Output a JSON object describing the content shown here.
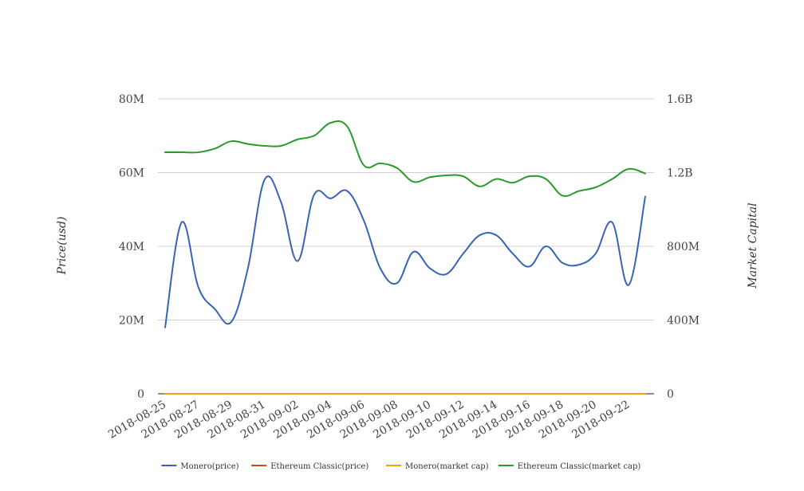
{
  "chart_data": {
    "type": "line",
    "title": "",
    "x": [
      "2018-08-25",
      "2018-08-26",
      "2018-08-27",
      "2018-08-28",
      "2018-08-29",
      "2018-08-30",
      "2018-08-31",
      "2018-09-01",
      "2018-09-02",
      "2018-09-03",
      "2018-09-04",
      "2018-09-05",
      "2018-09-06",
      "2018-09-07",
      "2018-09-08",
      "2018-09-09",
      "2018-09-10",
      "2018-09-11",
      "2018-09-12",
      "2018-09-13",
      "2018-09-14",
      "2018-09-15",
      "2018-09-16",
      "2018-09-17",
      "2018-09-18",
      "2018-09-19",
      "2018-09-20",
      "2018-09-21",
      "2018-09-22",
      "2018-09-23"
    ],
    "x_tick_labels": [
      "2018-08-25",
      "2018-08-27",
      "2018-08-29",
      "2018-08-31",
      "2018-09-02",
      "2018-09-04",
      "2018-09-06",
      "2018-09-08",
      "2018-09-10",
      "2018-09-12",
      "2018-09-14",
      "2018-09-16",
      "2018-09-18",
      "2018-09-20",
      "2018-09-22"
    ],
    "y_left": {
      "label": "Price(usd)",
      "ticks": [
        0,
        20000000,
        40000000,
        60000000,
        80000000
      ],
      "tick_labels": [
        "0",
        "20M",
        "40M",
        "60M",
        "80M"
      ],
      "range": [
        0,
        80000000
      ]
    },
    "y_right": {
      "label": "Market Capital",
      "ticks": [
        0,
        400000000,
        800000000,
        1200000000,
        1600000000
      ],
      "tick_labels": [
        "0",
        "400M",
        "800M",
        "1.2B",
        "1.6B"
      ],
      "range": [
        0,
        1600000000
      ]
    },
    "grid": true,
    "legend_position": "bottom",
    "series": [
      {
        "name": "Monero(price)",
        "axis": "left",
        "color": "#3a62b8",
        "values": [
          18000000,
          46500000,
          29000000,
          23000000,
          19500000,
          34000000,
          58000000,
          52000000,
          36000000,
          54000000,
          53000000,
          55000000,
          47000000,
          34000000,
          30000000,
          38500000,
          34000000,
          32500000,
          38000000,
          43000000,
          43000000,
          38000000,
          34500000,
          40000000,
          35500000,
          35000000,
          38000000,
          46500000,
          29500000,
          53500000
        ]
      },
      {
        "name": "Ethereum Classic(price)",
        "axis": "left",
        "color": "#c8491c",
        "values": [
          12,
          12,
          12,
          12,
          12,
          12,
          12,
          12,
          12,
          12,
          12,
          12,
          12,
          12,
          12,
          12,
          12,
          12,
          12,
          12,
          12,
          12,
          12,
          12,
          12,
          12,
          12,
          12,
          12,
          12
        ]
      },
      {
        "name": "Monero(market cap)",
        "axis": "right",
        "color": "#f0a30a",
        "values": [
          100,
          100,
          100,
          100,
          100,
          100,
          100,
          100,
          100,
          100,
          100,
          100,
          100,
          100,
          100,
          100,
          100,
          100,
          100,
          100,
          100,
          100,
          100,
          100,
          100,
          100,
          100,
          100,
          100,
          100
        ]
      },
      {
        "name": "Ethereum Classic(market cap)",
        "axis": "right",
        "color": "#2a9a2a",
        "values": [
          1310000000,
          1310000000,
          1310000000,
          1330000000,
          1370000000,
          1355000000,
          1345000000,
          1345000000,
          1380000000,
          1400000000,
          1470000000,
          1450000000,
          1240000000,
          1250000000,
          1225000000,
          1150000000,
          1175000000,
          1185000000,
          1180000000,
          1125000000,
          1165000000,
          1145000000,
          1180000000,
          1165000000,
          1075000000,
          1100000000,
          1120000000,
          1165000000,
          1220000000,
          1195000000
        ]
      }
    ]
  }
}
